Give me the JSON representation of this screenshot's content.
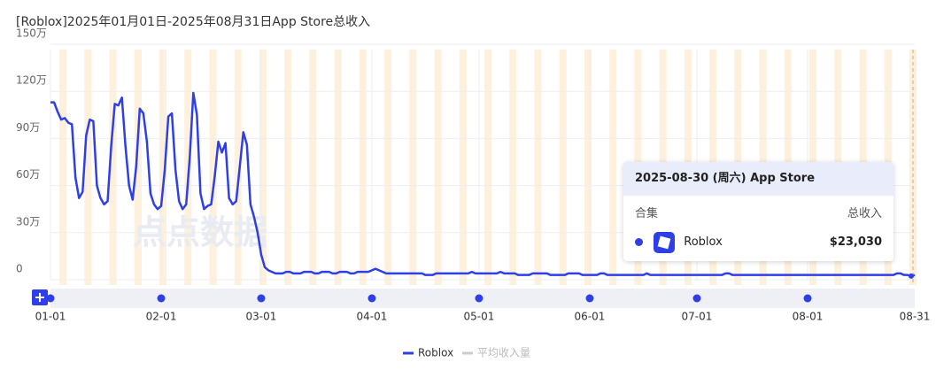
{
  "chart_data": {
    "type": "line",
    "title": "[Roblox]2025年01月01日-2025年08月31日App Store总收入",
    "series": [
      {
        "name": "Roblox",
        "color": "#2f3fe8",
        "values": [
          113,
          113,
          107,
          102,
          103,
          100,
          99,
          65,
          52,
          56,
          92,
          102,
          101,
          60,
          52,
          48,
          50,
          85,
          112,
          111,
          116,
          85,
          60,
          51,
          72,
          109,
          106,
          88,
          55,
          48,
          45,
          47,
          70,
          104,
          106,
          70,
          50,
          45,
          48,
          78,
          119,
          105,
          55,
          45,
          47,
          48,
          66,
          88,
          81,
          87,
          52,
          48,
          50,
          72,
          94,
          86,
          48,
          40,
          30,
          16,
          8,
          6,
          5,
          4,
          4,
          4,
          5,
          5,
          4,
          4,
          4,
          5,
          5,
          5,
          4,
          4,
          5,
          5,
          5,
          4,
          4,
          5,
          5,
          5,
          4,
          4,
          5,
          5,
          5,
          5,
          6,
          7,
          6,
          5,
          4,
          4,
          4,
          4,
          4,
          4,
          4,
          4,
          4,
          4,
          4,
          3,
          3,
          3,
          4,
          4,
          4,
          4,
          4,
          4,
          4,
          4,
          4,
          4,
          5,
          4,
          4,
          4,
          4,
          4,
          4,
          4,
          5,
          4,
          4,
          4,
          4,
          3,
          3,
          3,
          3,
          4,
          4,
          4,
          4,
          4,
          3,
          3,
          3,
          3,
          3,
          4,
          4,
          4,
          4,
          3,
          3,
          3,
          3,
          3,
          4,
          4,
          3,
          3,
          3,
          3,
          3,
          3,
          3,
          3,
          3,
          3,
          3,
          4,
          3,
          3,
          3,
          3,
          3,
          3,
          3,
          3,
          3,
          3,
          3,
          3,
          3,
          3,
          3,
          3,
          3,
          3,
          3,
          3,
          3,
          4,
          4,
          3,
          3,
          3,
          3,
          3,
          3,
          3,
          3,
          3,
          3,
          3,
          3,
          3,
          3,
          3,
          3,
          3,
          3,
          3,
          3,
          3,
          3,
          3,
          3,
          3,
          3,
          3,
          3,
          3,
          3,
          3,
          3,
          3,
          3,
          3,
          3,
          3,
          3,
          3,
          3,
          3,
          3,
          3,
          3,
          3,
          3,
          4,
          4,
          3,
          3,
          2.303,
          3
        ]
      }
    ],
    "inactive_legend": "平均收入量",
    "ylim": [
      0,
      150
    ],
    "yticks": [
      {
        "value": 0,
        "label": "0"
      },
      {
        "value": 30,
        "label": "30万"
      },
      {
        "value": 60,
        "label": "60万"
      },
      {
        "value": 90,
        "label": "90万"
      },
      {
        "value": 120,
        "label": "120万"
      },
      {
        "value": 150,
        "label": "150万"
      }
    ],
    "xlim": [
      0,
      242
    ],
    "xticks": [
      {
        "value": 0,
        "label": "01-01"
      },
      {
        "value": 31,
        "label": "02-01"
      },
      {
        "value": 59,
        "label": "03-01"
      },
      {
        "value": 90,
        "label": "04-01"
      },
      {
        "value": 120,
        "label": "05-01"
      },
      {
        "value": 151,
        "label": "06-01"
      },
      {
        "value": 181,
        "label": "07-01"
      },
      {
        "value": 212,
        "label": "08-01"
      },
      {
        "value": 242,
        "label": "08-31"
      }
    ],
    "grid": true,
    "watermark": "点点数据",
    "tooltip": {
      "index": 241,
      "title": "2025-08-30 (周六) App Store",
      "col_left": "合集",
      "col_right": "总收入",
      "row_name": "Roblox",
      "row_value": "$23,030"
    }
  }
}
